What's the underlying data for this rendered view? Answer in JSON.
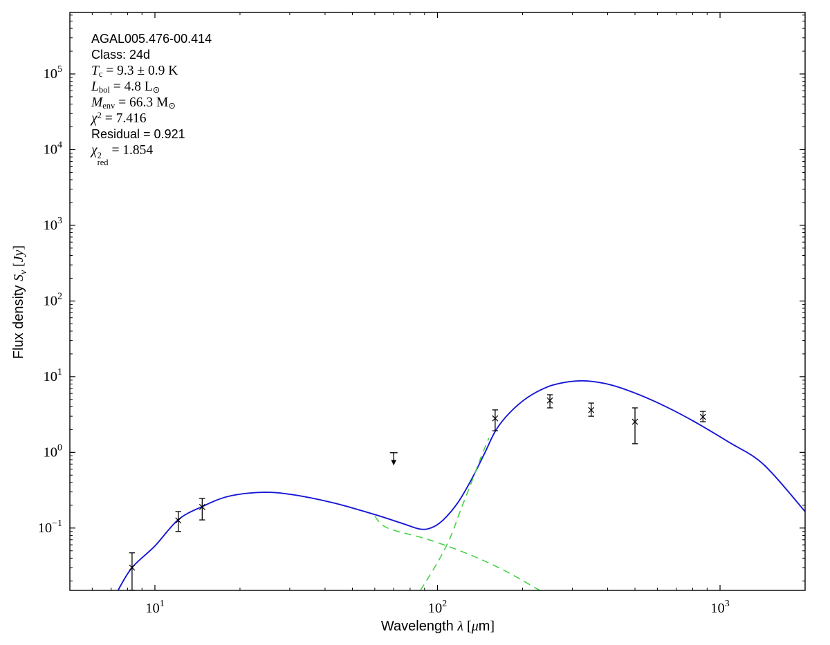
{
  "annotation": {
    "source_name": "AGAL005.476-00.414",
    "class_line": "Class: 24d",
    "tc": {
      "var": "T",
      "sub": "c",
      "rest": " = 9.3 ± 0.9 K"
    },
    "lbol": {
      "var": "L",
      "sub": "bol",
      "rest": " = 4.8 L",
      "unit_sub": "⊙"
    },
    "menv": {
      "var": "M",
      "sub": "env",
      "rest": " = 66.3 M",
      "unit_sub": "⊙"
    },
    "chi2": {
      "var": "χ",
      "sup": "2",
      "rest": " = 7.416"
    },
    "residual": "Residual = 0.921",
    "chi2red": {
      "var": "χ",
      "sup": "2",
      "sub": "red",
      "rest": " = 1.854"
    }
  },
  "chart_data": {
    "type": "line",
    "title": "",
    "xlabel": "Wavelength λ [μm]",
    "ylabel": "Flux density Sν [Jy]",
    "xlabel_parts": [
      {
        "t": "Wavelength ",
        "f": "sans"
      },
      {
        "t": "λ",
        "f": "mathit"
      },
      {
        "t": " [",
        "f": "serif"
      },
      {
        "t": "μ",
        "f": "mathit"
      },
      {
        "t": "m",
        "f": "sans"
      },
      {
        "t": "]",
        "f": "serif"
      }
    ],
    "ylabel_parts": [
      {
        "t": "Flux density ",
        "f": "sans"
      },
      {
        "t": "S",
        "f": "mathit"
      },
      {
        "t": "ν",
        "f": "mathsub"
      },
      {
        "t": " [",
        "f": "serif"
      },
      {
        "t": "Jy",
        "f": "mathit"
      },
      {
        "t": "]",
        "f": "serif"
      }
    ],
    "x_axis": {
      "scale": "log",
      "min": 5,
      "max": 2000,
      "major_tick_exponents": [
        1,
        2,
        3
      ]
    },
    "y_axis": {
      "scale": "log",
      "min": 0.015,
      "max": 650000,
      "major_tick_exponents": [
        5,
        4,
        3,
        2,
        1,
        0,
        -1
      ]
    },
    "grid": false,
    "legend": "none",
    "colors": {
      "model": "#1717d6",
      "components": "#45d245",
      "data": "#000000"
    },
    "annotation_text": [
      "AGAL005.476-00.414",
      "Class: 24d",
      "T_c = 9.3 ± 0.9 K",
      "L_bol = 4.8 L_⊙",
      "M_env = 66.3 M_⊙",
      "χ² = 7.416",
      "Residual = 0.921",
      "χ²_red = 1.854"
    ],
    "series": [
      {
        "name": "total-model-fit",
        "style": "solid",
        "color": "#1717d6",
        "points": [
          [
            7.4,
            0.015
          ],
          [
            8.3,
            0.03
          ],
          [
            10,
            0.058
          ],
          [
            12.1,
            0.129
          ],
          [
            14.7,
            0.192
          ],
          [
            18.2,
            0.262
          ],
          [
            23.8,
            0.296
          ],
          [
            30.3,
            0.278
          ],
          [
            42.6,
            0.216
          ],
          [
            59.9,
            0.151
          ],
          [
            75.1,
            0.115
          ],
          [
            86.7,
            0.097
          ],
          [
            95.4,
            0.101
          ],
          [
            105,
            0.129
          ],
          [
            118,
            0.216
          ],
          [
            132,
            0.441
          ],
          [
            147,
            0.983
          ],
          [
            161,
            1.97
          ],
          [
            180,
            3.33
          ],
          [
            208,
            5.29
          ],
          [
            247,
            7.41
          ],
          [
            293,
            8.58
          ],
          [
            338,
            8.77
          ],
          [
            412,
            7.76
          ],
          [
            516,
            5.79
          ],
          [
            647,
            3.97
          ],
          [
            812,
            2.54
          ],
          [
            1076,
            1.36
          ],
          [
            1427,
            0.69
          ],
          [
            2000,
            0.165
          ]
        ]
      },
      {
        "name": "warm-component",
        "style": "dashed",
        "color": "#45d245",
        "points": [
          [
            60,
            0.143
          ],
          [
            66.6,
            0.1
          ],
          [
            93.4,
            0.07
          ],
          [
            131,
            0.044
          ],
          [
            174,
            0.027
          ],
          [
            230,
            0.015
          ]
        ]
      },
      {
        "name": "cold-component",
        "style": "dashed",
        "color": "#45d245",
        "points": [
          [
            87,
            0.015
          ],
          [
            100,
            0.035
          ],
          [
            111,
            0.075
          ],
          [
            120,
            0.162
          ],
          [
            131,
            0.375
          ],
          [
            142,
            0.83
          ],
          [
            152,
            1.55
          ]
        ]
      }
    ],
    "data_points": [
      {
        "wavelength_um": 8.3,
        "flux_jy": 0.03,
        "flux_hi": 0.047,
        "flux_lo": 0.0151
      },
      {
        "wavelength_um": 12.1,
        "flux_jy": 0.126,
        "flux_hi": 0.165,
        "flux_lo": 0.09
      },
      {
        "wavelength_um": 14.7,
        "flux_jy": 0.19,
        "flux_hi": 0.246,
        "flux_lo": 0.128
      },
      {
        "wavelength_um": 160,
        "flux_jy": 2.81,
        "flux_hi": 3.64,
        "flux_lo": 1.93
      },
      {
        "wavelength_um": 250,
        "flux_jy": 4.85,
        "flux_hi": 5.77,
        "flux_lo": 3.87
      },
      {
        "wavelength_um": 350,
        "flux_jy": 3.62,
        "flux_hi": 4.48,
        "flux_lo": 3.0
      },
      {
        "wavelength_um": 500,
        "flux_jy": 2.54,
        "flux_hi": 3.87,
        "flux_lo": 1.3
      },
      {
        "wavelength_um": 870,
        "flux_jy": 2.94,
        "flux_hi": 3.48,
        "flux_lo": 2.54
      }
    ],
    "upper_limits": [
      {
        "wavelength_um": 70,
        "flux_jy": 0.99
      }
    ]
  }
}
